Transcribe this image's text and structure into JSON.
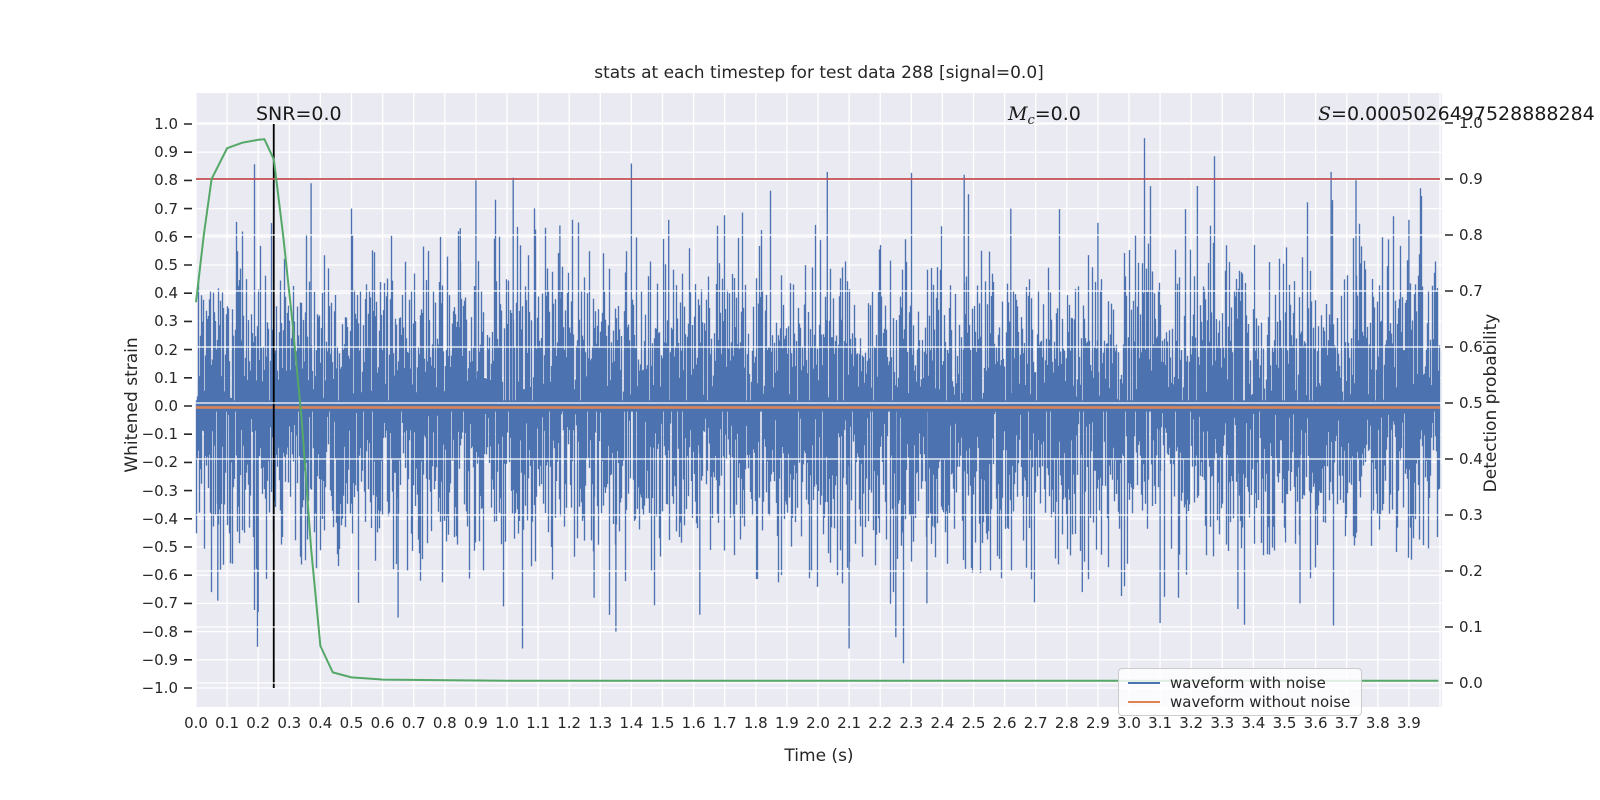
{
  "figure": {
    "background": "#ffffff",
    "axes_background": "#eaeaf2",
    "grid_color": "#ffffff",
    "text_color": "#262626"
  },
  "annotations": {
    "snr": "SNR=0.0",
    "mc_prefix": "M",
    "mc_sub": "c",
    "mc_suffix": "=0.0",
    "s_prefix": "S",
    "s_suffix": "=0.0005026497528888284"
  },
  "chart_data": {
    "type": "line",
    "title": "stats at each timestep for test data 288 [signal=0.0]",
    "xlabel": "Time (s)",
    "ylabel_left": "Whitened strain",
    "ylabel_right": "Detection probability",
    "xlim": [
      0.0,
      4.005
    ],
    "ylim_left": [
      -1.07,
      1.11
    ],
    "ylim_right": [
      -0.043,
      1.054
    ],
    "grid": true,
    "x_ticks": [
      "0.0",
      "0.1",
      "0.2",
      "0.3",
      "0.4",
      "0.5",
      "0.6",
      "0.7",
      "0.8",
      "0.9",
      "1.0",
      "1.1",
      "1.2",
      "1.3",
      "1.4",
      "1.5",
      "1.6",
      "1.7",
      "1.8",
      "1.9",
      "2.0",
      "2.1",
      "2.2",
      "2.3",
      "2.4",
      "2.5",
      "2.6",
      "2.7",
      "2.8",
      "2.9",
      "3.0",
      "3.1",
      "3.2",
      "3.3",
      "3.4",
      "3.5",
      "3.6",
      "3.7",
      "3.8",
      "3.9"
    ],
    "y_ticks_left": [
      "1.0",
      "0.9",
      "0.8",
      "0.7",
      "0.6",
      "0.5",
      "0.4",
      "0.3",
      "0.2",
      "0.1",
      "0.0",
      "−0.1",
      "−0.2",
      "−0.3",
      "−0.4",
      "−0.5",
      "−0.6",
      "−0.7",
      "−0.8",
      "−0.9",
      "−1.0"
    ],
    "y_ticks_right": [
      "1.0",
      "0.9",
      "0.8",
      "0.7",
      "0.6",
      "0.5",
      "0.4",
      "0.3",
      "0.2",
      "0.1",
      "0.0"
    ],
    "threshold_line": {
      "axis": "right",
      "value": 0.9,
      "color": "#c44e52"
    },
    "event_marker": {
      "time": 0.25,
      "span_left": [
        -1.0,
        1.0
      ],
      "color": "#000000"
    },
    "legend": {
      "location": "lower right",
      "entries": [
        {
          "label": "waveform with noise",
          "color": "#4c72b0"
        },
        {
          "label": "waveform without noise",
          "color": "#dd8452"
        }
      ]
    },
    "series": [
      {
        "name": "waveform with noise",
        "axis": "left",
        "color": "#4c72b0",
        "kind": "noise",
        "noise_model": {
          "seed": 20,
          "sigma": 0.235,
          "samples_per_column": 5,
          "columns": 1244,
          "clip": 0.975
        },
        "feature_spikes": [
          [
            0.07,
            -0.69
          ],
          [
            0.2,
            -0.73
          ],
          [
            0.37,
            0.79
          ],
          [
            0.5,
            0.7
          ],
          [
            0.65,
            -0.75
          ],
          [
            0.85,
            0.63
          ],
          [
            0.9,
            0.8
          ],
          [
            1.02,
            0.81
          ],
          [
            1.05,
            -0.86
          ],
          [
            1.17,
            0.64
          ],
          [
            1.28,
            -0.68
          ],
          [
            1.35,
            -0.8
          ],
          [
            1.4,
            0.86
          ],
          [
            1.52,
            0.66
          ],
          [
            1.62,
            -0.74
          ],
          [
            2.03,
            0.83
          ],
          [
            2.1,
            -0.86
          ],
          [
            2.25,
            -0.82
          ],
          [
            2.35,
            -0.7
          ],
          [
            2.47,
            0.82
          ],
          [
            2.62,
            0.7
          ],
          [
            2.85,
            -0.66
          ],
          [
            2.9,
            0.65
          ],
          [
            3.05,
            0.95
          ],
          [
            3.1,
            -0.77
          ],
          [
            3.22,
            0.78
          ],
          [
            3.35,
            -0.72
          ],
          [
            3.55,
            -0.7
          ],
          [
            3.65,
            0.83
          ],
          [
            3.73,
            0.8
          ],
          [
            3.9,
            0.66
          ]
        ]
      },
      {
        "name": "waveform without noise",
        "axis": "left",
        "color": "#dd8452",
        "kind": "constant",
        "value": 0.0
      },
      {
        "name": "detection probability",
        "axis": "right",
        "color": "#55a868",
        "kind": "curve",
        "points": [
          [
            0.0,
            0.68
          ],
          [
            0.025,
            0.8
          ],
          [
            0.05,
            0.9
          ],
          [
            0.1,
            0.955
          ],
          [
            0.15,
            0.965
          ],
          [
            0.2,
            0.97
          ],
          [
            0.22,
            0.971
          ],
          [
            0.25,
            0.935
          ],
          [
            0.28,
            0.8
          ],
          [
            0.31,
            0.645
          ],
          [
            0.34,
            0.47
          ],
          [
            0.37,
            0.24
          ],
          [
            0.4,
            0.066
          ],
          [
            0.44,
            0.019
          ],
          [
            0.5,
            0.01
          ],
          [
            0.6,
            0.006
          ],
          [
            1.0,
            0.004
          ],
          [
            2.0,
            0.004
          ],
          [
            3.0,
            0.004
          ],
          [
            3.995,
            0.004
          ]
        ]
      }
    ]
  }
}
